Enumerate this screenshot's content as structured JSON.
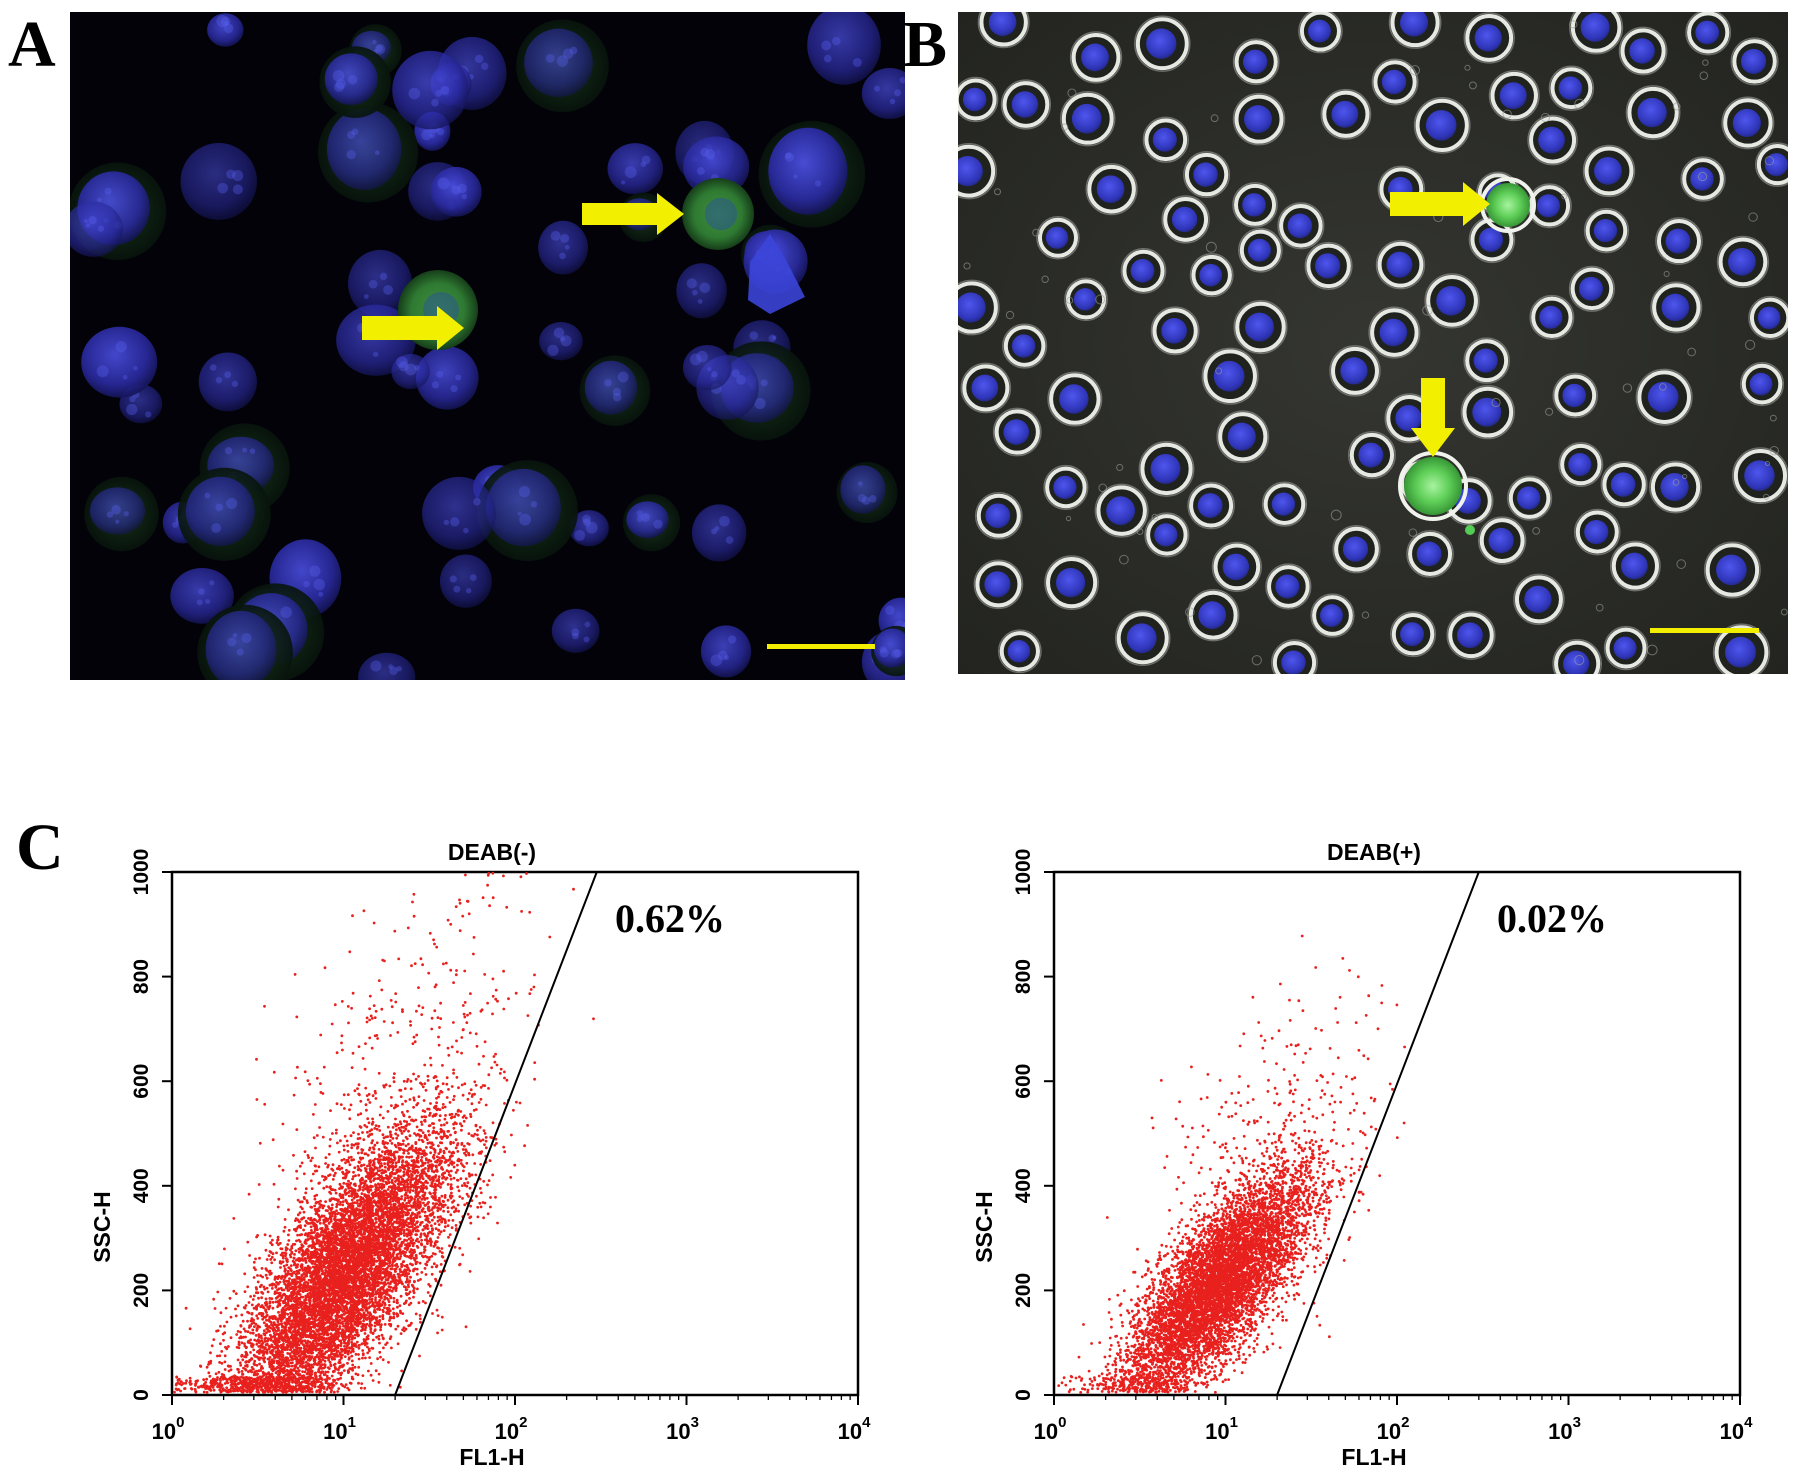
{
  "figure": {
    "panels": [
      {
        "letter": "A"
      },
      {
        "letter": "B"
      },
      {
        "letter": "C"
      }
    ]
  },
  "colors": {
    "arrow": "#f2ef00",
    "scale_bar": "#f2ef00",
    "dots": "#e8211e",
    "nucleus": "#3a3fd0",
    "aldh_positive": "#4fc24a"
  },
  "chart_data": [
    {
      "type": "scatter",
      "title": "DEAB(-)",
      "xlabel": "FL1-H",
      "ylabel": "SSC-H",
      "x_scale": "log",
      "xlim": [
        1,
        10000
      ],
      "ylim": [
        0,
        1000
      ],
      "x_ticks": [
        {
          "base": "10",
          "exp": "0"
        },
        {
          "base": "10",
          "exp": "1"
        },
        {
          "base": "10",
          "exp": "2"
        },
        {
          "base": "10",
          "exp": "3"
        },
        {
          "base": "10",
          "exp": "4"
        }
      ],
      "y_ticks": [
        "0",
        "200",
        "400",
        "600",
        "800",
        "1000"
      ],
      "gate_label": "0.62%",
      "gate_polygon": [
        [
          20,
          0
        ],
        [
          300,
          1000
        ],
        [
          10000,
          1000
        ],
        [
          10000,
          0
        ]
      ],
      "cloud": {
        "center_fl1": 10,
        "center_ssc": 230,
        "spread": "wide"
      }
    },
    {
      "type": "scatter",
      "title": "DEAB(+)",
      "xlabel": "FL1-H",
      "ylabel": "SSC-H",
      "x_scale": "log",
      "xlim": [
        1,
        10000
      ],
      "ylim": [
        0,
        1000
      ],
      "x_ticks": [
        {
          "base": "10",
          "exp": "0"
        },
        {
          "base": "10",
          "exp": "1"
        },
        {
          "base": "10",
          "exp": "2"
        },
        {
          "base": "10",
          "exp": "3"
        },
        {
          "base": "10",
          "exp": "4"
        }
      ],
      "y_ticks": [
        "0",
        "200",
        "400",
        "600",
        "800",
        "1000"
      ],
      "gate_label": "0.02%",
      "gate_polygon": [
        [
          20,
          0
        ],
        [
          300,
          1000
        ],
        [
          10000,
          1000
        ],
        [
          10000,
          0
        ]
      ],
      "cloud": {
        "center_fl1": 9,
        "center_ssc": 210,
        "spread": "narrow"
      }
    }
  ]
}
